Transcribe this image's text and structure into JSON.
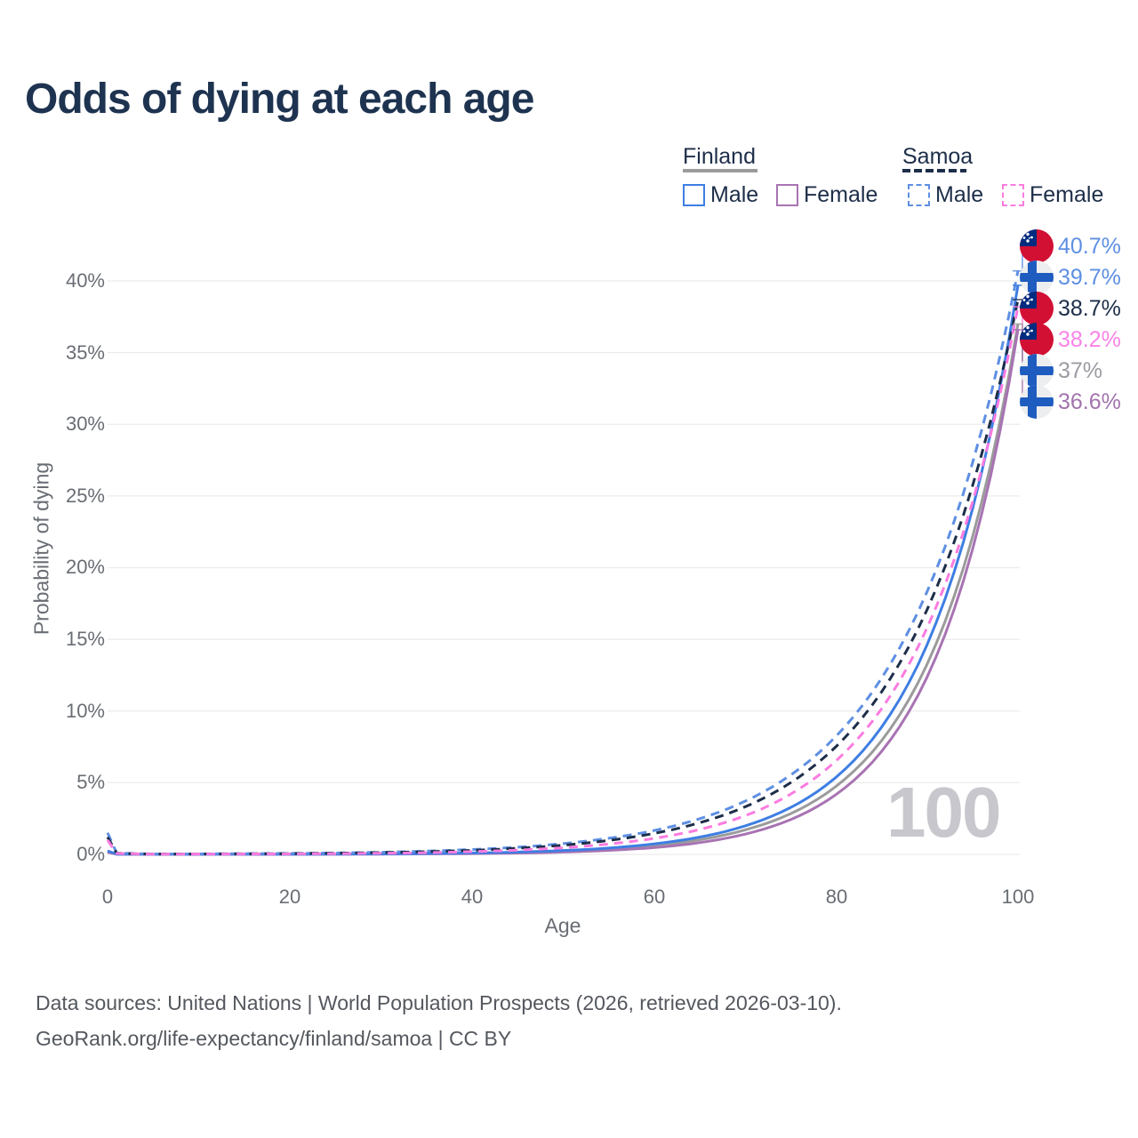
{
  "title": "Odds of dying at each age",
  "watermark_age": "100",
  "legend": {
    "groups": [
      {
        "label": "Finland",
        "line_style": "solid",
        "line_color": "#9b9b9b",
        "items": [
          {
            "label": "Male",
            "color": "#3e7ee3",
            "dashed": false
          },
          {
            "label": "Female",
            "color": "#a873b3",
            "dashed": false
          }
        ]
      },
      {
        "label": "Samoa",
        "line_style": "dashed",
        "line_color": "#1d2e49",
        "items": [
          {
            "label": "Male",
            "color": "#5e8fe3",
            "dashed": true
          },
          {
            "label": "Female",
            "color": "#fb7be0",
            "dashed": true
          }
        ]
      }
    ]
  },
  "y_axis": {
    "title": "Probability of dying",
    "ticks": [
      "0%",
      "5%",
      "10%",
      "15%",
      "20%",
      "25%",
      "30%",
      "35%",
      "40%"
    ]
  },
  "x_axis": {
    "title": "Age",
    "ticks": [
      "0",
      "20",
      "40",
      "60",
      "80",
      "100"
    ]
  },
  "end_labels": [
    {
      "flag": "samoa",
      "text": "40.7%",
      "color": "#5e8fe3"
    },
    {
      "flag": "finland",
      "text": "39.7%",
      "color": "#5e8fe3"
    },
    {
      "flag": "samoa",
      "text": "38.7%",
      "color": "#1d2e49"
    },
    {
      "flag": "samoa",
      "text": "38.2%",
      "color": "#f883e8"
    },
    {
      "flag": "finland",
      "text": "37%",
      "color": "#9b9ba3"
    },
    {
      "flag": "finland",
      "text": "36.6%",
      "color": "#a273ae"
    }
  ],
  "footer": {
    "line1": "Data sources: United Nations | World Population Prospects (2026, retrieved 2026-03-10).",
    "line2": "GeoRank.org/life-expectancy/finland/samoa | CC BY"
  },
  "chart_data": {
    "type": "line",
    "title": "Odds of dying at each age",
    "xlabel": "Age",
    "ylabel": "Probability of dying",
    "xlim": [
      0,
      100
    ],
    "ylim": [
      0,
      43
    ],
    "xticks": [
      0,
      20,
      40,
      60,
      80,
      100
    ],
    "yticks_pct": [
      0,
      5,
      10,
      15,
      20,
      25,
      30,
      35,
      40
    ],
    "grid": true,
    "legend_position": "top-right",
    "x": [
      0,
      1,
      5,
      10,
      15,
      20,
      25,
      30,
      35,
      40,
      45,
      50,
      55,
      60,
      65,
      70,
      75,
      80,
      85,
      90,
      95,
      100
    ],
    "series": [
      {
        "name": "Samoa Male",
        "country": "Samoa",
        "sex": "Male",
        "color": "#5e8fe3",
        "dashed": true,
        "end_value_pct": 40.7,
        "values": [
          1.5,
          0.1,
          0.03,
          0.035,
          0.05,
          0.07,
          0.1,
          0.15,
          0.23,
          0.34,
          0.5,
          0.75,
          1.12,
          1.66,
          2.48,
          3.7,
          5.52,
          8.23,
          12.27,
          18.3,
          27.29,
          40.7
        ]
      },
      {
        "name": "Finland Male",
        "country": "Finland",
        "sex": "Male",
        "color": "#3e7ee3",
        "dashed": false,
        "end_value_pct": 39.7,
        "values": [
          0.25,
          0.02,
          0.008,
          0.008,
          0.012,
          0.015,
          0.025,
          0.04,
          0.06,
          0.1,
          0.16,
          0.27,
          0.44,
          0.73,
          1.2,
          1.98,
          3.26,
          5.37,
          8.86,
          14.6,
          24.08,
          39.7
        ]
      },
      {
        "name": "Samoa",
        "country": "Samoa",
        "sex": "Both",
        "color": "#1d2e49",
        "dashed": true,
        "end_value_pct": 38.7,
        "values": [
          1.2,
          0.085,
          0.025,
          0.028,
          0.04,
          0.055,
          0.085,
          0.125,
          0.19,
          0.28,
          0.43,
          0.64,
          0.97,
          1.46,
          2.2,
          3.31,
          4.99,
          7.51,
          11.32,
          17.05,
          25.69,
          38.7
        ]
      },
      {
        "name": "Samoa Female",
        "country": "Samoa",
        "sex": "Female",
        "color": "#fb7be0",
        "dashed": true,
        "end_value_pct": 38.2,
        "values": [
          1.0,
          0.07,
          0.02,
          0.022,
          0.028,
          0.035,
          0.05,
          0.08,
          0.12,
          0.19,
          0.3,
          0.46,
          0.72,
          1.11,
          1.73,
          2.69,
          4.19,
          6.52,
          10.14,
          15.78,
          24.55,
          38.2
        ]
      },
      {
        "name": "Finland",
        "country": "Finland",
        "sex": "Both",
        "color": "#9b9b9b",
        "dashed": false,
        "end_value_pct": 37.0,
        "values": [
          0.2,
          0.018,
          0.006,
          0.006,
          0.009,
          0.012,
          0.02,
          0.03,
          0.05,
          0.08,
          0.13,
          0.22,
          0.36,
          0.61,
          1.01,
          1.7,
          2.83,
          4.74,
          7.92,
          13.24,
          22.13,
          37.0
        ]
      },
      {
        "name": "Finland Female",
        "country": "Finland",
        "sex": "Female",
        "color": "#a873b3",
        "dashed": false,
        "end_value_pct": 36.6,
        "values": [
          0.15,
          0.015,
          0.005,
          0.005,
          0.007,
          0.008,
          0.012,
          0.02,
          0.035,
          0.055,
          0.09,
          0.16,
          0.28,
          0.47,
          0.82,
          1.41,
          2.42,
          4.17,
          7.17,
          12.35,
          21.26,
          36.6
        ]
      }
    ]
  }
}
